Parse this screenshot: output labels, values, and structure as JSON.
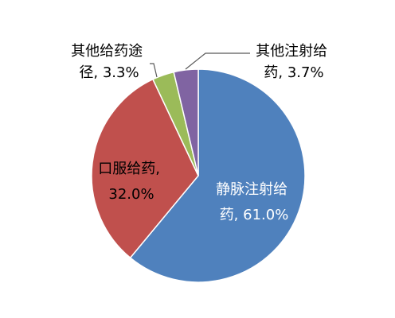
{
  "chart_data": {
    "type": "pie",
    "title": "",
    "slices": [
      {
        "label": "静脉注射给药",
        "value": 61.0,
        "display_lines": [
          "静脉注射给",
          "药, 61.0%"
        ],
        "color": "#4F81BD"
      },
      {
        "label": "口服给药",
        "value": 32.0,
        "display_lines": [
          "口服给药,",
          "32.0%"
        ],
        "color": "#C0504D"
      },
      {
        "label": "其他给药途径",
        "value": 3.3,
        "display_lines": [
          "其他给药途",
          "径, 3.3%"
        ],
        "color": "#9BBB59"
      },
      {
        "label": "其他注射给药",
        "value": 3.7,
        "display_lines": [
          "其他注射给",
          "药, 3.7%"
        ],
        "color": "#8064A2"
      }
    ],
    "legend": "none",
    "data_labels": "category and percentage"
  }
}
